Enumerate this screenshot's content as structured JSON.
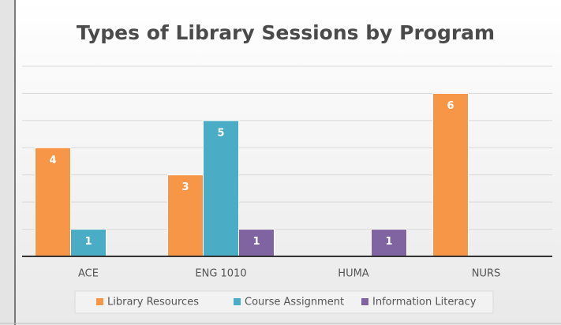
{
  "chart_data": {
    "type": "bar",
    "title": "Types of Library Sessions by Program",
    "categories": [
      "ACE",
      "ENG 1010",
      "HUMA",
      "NURS"
    ],
    "series": [
      {
        "name": "Library Resources",
        "color": "#f79646",
        "values": [
          4,
          3,
          null,
          6
        ]
      },
      {
        "name": "Course Assignment",
        "color": "#4bacc6",
        "values": [
          1,
          5,
          null,
          null
        ]
      },
      {
        "name": "Information Literacy",
        "color": "#8064a2",
        "values": [
          null,
          1,
          1,
          null
        ]
      }
    ],
    "ylim": [
      0,
      7
    ],
    "yticks": [
      0,
      1,
      2,
      3,
      4,
      5,
      6,
      7
    ],
    "grid": true,
    "legend": "bottom"
  }
}
